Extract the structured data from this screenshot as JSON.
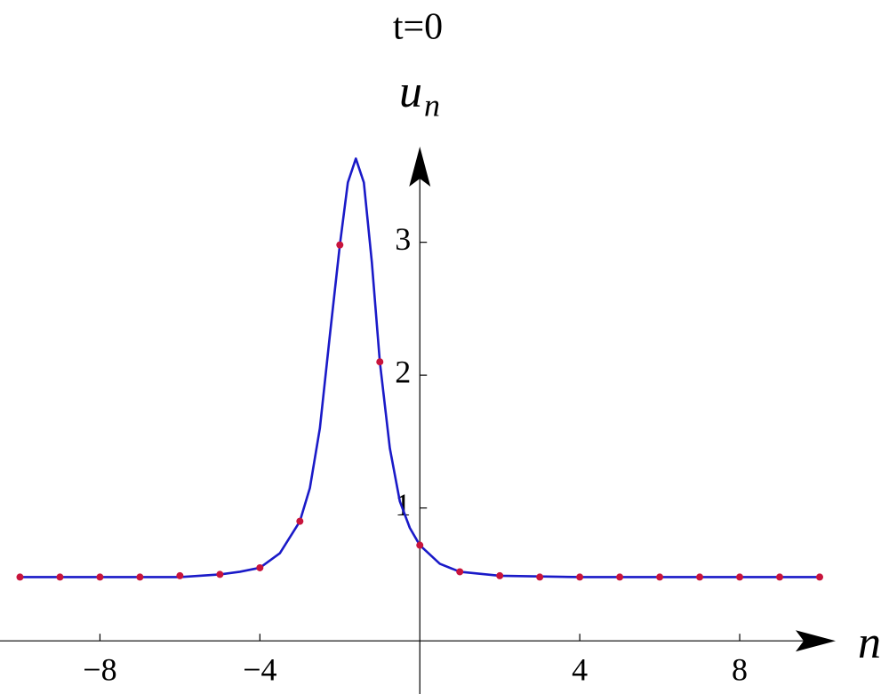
{
  "chart_data": {
    "type": "line",
    "title": "t=0",
    "x_label": "n",
    "y_label": "u",
    "y_label_subscript": "n",
    "xlim": [
      -10.5,
      10.4
    ],
    "ylim": [
      -0.4,
      3.72
    ],
    "xticks": [
      {
        "value": -8,
        "label": "−8"
      },
      {
        "value": -4,
        "label": "−4"
      },
      4,
      8
    ],
    "yticks": [
      1,
      2,
      3
    ],
    "series": [
      {
        "type": "line",
        "color": "#1a1ac8",
        "x": [
          -10,
          -8,
          -6,
          -5,
          -4.5,
          -4,
          -3.5,
          -3,
          -2.75,
          -2.5,
          -2.25,
          -2,
          -1.8,
          -1.6,
          -1.4,
          -1.2,
          -1,
          -0.75,
          -0.5,
          -0.25,
          0,
          0.5,
          1,
          2,
          4,
          6,
          8,
          10
        ],
        "values": [
          0.48,
          0.48,
          0.48,
          0.5,
          0.52,
          0.55,
          0.66,
          0.9,
          1.15,
          1.6,
          2.3,
          2.98,
          3.45,
          3.63,
          3.45,
          2.85,
          2.1,
          1.45,
          1.05,
          0.85,
          0.72,
          0.58,
          0.52,
          0.49,
          0.48,
          0.48,
          0.48,
          0.48
        ]
      },
      {
        "type": "scatter",
        "color": "#c8143c",
        "x": [
          -10,
          -9,
          -8,
          -7,
          -6,
          -5,
          -4,
          -3,
          -2,
          -1,
          0,
          1,
          2,
          3,
          4,
          5,
          6,
          7,
          8,
          9,
          10
        ],
        "values": [
          0.48,
          0.48,
          0.48,
          0.48,
          0.49,
          0.5,
          0.55,
          0.9,
          2.98,
          2.1,
          0.72,
          0.52,
          0.49,
          0.48,
          0.48,
          0.48,
          0.48,
          0.48,
          0.48,
          0.48,
          0.48
        ]
      }
    ]
  }
}
